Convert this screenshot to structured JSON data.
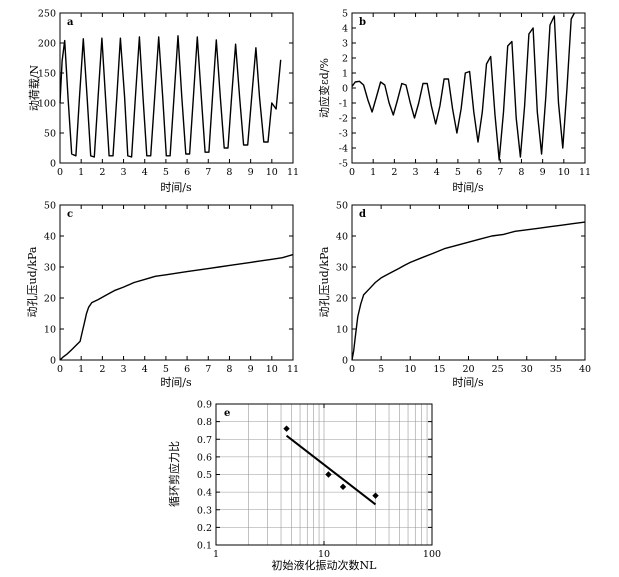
{
  "chart_data": [
    {
      "id": "a",
      "type": "line",
      "panel_label": "a",
      "xlabel": "时间/s",
      "ylabel": "动荷载/N",
      "xlim": [
        0,
        11
      ],
      "ylim": [
        0,
        250
      ],
      "xticks": [
        "0",
        "1",
        "2",
        "3",
        "4",
        "5",
        "6",
        "7",
        "8",
        "9",
        "10",
        "11"
      ],
      "yticks": [
        "0",
        "50",
        "100",
        "150",
        "200",
        "250"
      ],
      "series": [
        {
          "x": [
            0,
            0.1,
            0.22,
            0.38,
            0.55,
            0.75,
            0.92,
            1.1,
            1.28,
            1.45,
            1.62,
            1.8,
            1.98,
            2.15,
            2.32,
            2.5,
            2.68,
            2.85,
            3.05,
            3.2,
            3.38,
            3.56,
            3.75,
            3.92,
            4.1,
            4.28,
            4.47,
            4.66,
            4.85,
            5.02,
            5.2,
            5.38,
            5.57,
            5.75,
            5.94,
            6.12,
            6.3,
            6.48,
            6.67,
            6.85,
            7.03,
            7.2,
            7.38,
            7.57,
            7.75,
            7.93,
            8.1,
            8.29,
            8.48,
            8.67,
            8.86,
            9.05,
            9.25,
            9.42,
            9.62,
            9.82,
            10.0,
            10.2,
            10.42
          ],
          "y": [
            100,
            170,
            204,
            110,
            15,
            12,
            110,
            207,
            110,
            12,
            10,
            110,
            208,
            110,
            12,
            12,
            110,
            208,
            110,
            12,
            10,
            110,
            210,
            110,
            12,
            12,
            110,
            210,
            110,
            12,
            12,
            110,
            212,
            110,
            15,
            15,
            110,
            210,
            110,
            18,
            18,
            110,
            205,
            110,
            25,
            25,
            110,
            198,
            110,
            30,
            30,
            110,
            192,
            110,
            35,
            35,
            100,
            90,
            172
          ]
        }
      ]
    },
    {
      "id": "b",
      "type": "line",
      "panel_label": "b",
      "xlabel": "时间/s",
      "ylabel": "动应变εd/%",
      "xlim": [
        0,
        11
      ],
      "ylim": [
        -5,
        5
      ],
      "xticks": [
        "0",
        "1",
        "2",
        "3",
        "4",
        "5",
        "6",
        "7",
        "8",
        "9",
        "10",
        "11"
      ],
      "yticks": [
        "-5",
        "-4",
        "-3",
        "-2",
        "-1",
        "0",
        "1",
        "2",
        "3",
        "4",
        "5"
      ],
      "series": [
        {
          "x": [
            0,
            0.15,
            0.35,
            0.55,
            0.75,
            0.95,
            1.15,
            1.35,
            1.55,
            1.75,
            1.95,
            2.15,
            2.35,
            2.55,
            2.75,
            2.95,
            3.15,
            3.35,
            3.55,
            3.75,
            3.95,
            4.15,
            4.35,
            4.55,
            4.75,
            4.95,
            5.15,
            5.35,
            5.55,
            5.75,
            5.95,
            6.15,
            6.35,
            6.55,
            6.75,
            6.95,
            7.15,
            7.35,
            7.55,
            7.75,
            7.95,
            8.15,
            8.35,
            8.55,
            8.75,
            8.95,
            9.15,
            9.35,
            9.55,
            9.75,
            9.95,
            10.15,
            10.35,
            10.5
          ],
          "y": [
            0.1,
            0.4,
            0.45,
            0.2,
            -0.8,
            -1.6,
            -0.6,
            0.4,
            0.2,
            -1.0,
            -1.8,
            -0.8,
            0.3,
            0.2,
            -1.0,
            -2.0,
            -1.0,
            0.3,
            0.3,
            -1.2,
            -2.4,
            -1.2,
            0.6,
            0.6,
            -1.4,
            -3.0,
            -1.4,
            1.0,
            1.1,
            -1.6,
            -3.6,
            -1.6,
            1.6,
            2.1,
            -1.8,
            -4.8,
            -1.6,
            2.8,
            3.1,
            -2.0,
            -4.6,
            -1.2,
            3.6,
            4.0,
            -1.6,
            -4.4,
            -0.6,
            4.2,
            4.8,
            -1.0,
            -4.0,
            0.0,
            4.6,
            5.0
          ]
        }
      ]
    },
    {
      "id": "c",
      "type": "line",
      "panel_label": "c",
      "xlabel": "时间/s",
      "ylabel": "动孔压ud/kPa",
      "xlim": [
        0,
        11
      ],
      "ylim": [
        0,
        50
      ],
      "xticks": [
        "0",
        "1",
        "2",
        "3",
        "4",
        "5",
        "6",
        "7",
        "8",
        "9",
        "10",
        "11"
      ],
      "yticks": [
        "0",
        "10",
        "20",
        "30",
        "40",
        "50"
      ],
      "series": [
        {
          "x": [
            0,
            0.15,
            0.35,
            0.5,
            0.65,
            0.8,
            0.95,
            1.05,
            1.15,
            1.25,
            1.35,
            1.5,
            1.8,
            2.2,
            2.6,
            3.0,
            3.5,
            4.0,
            4.5,
            5.0,
            5.5,
            6.0,
            6.5,
            7.0,
            7.5,
            8.0,
            8.5,
            9.0,
            9.5,
            10.0,
            10.5,
            11.0
          ],
          "y": [
            0,
            1,
            2,
            3,
            4,
            5,
            6,
            9,
            12,
            15,
            17,
            18.5,
            19.5,
            21,
            22.5,
            23.5,
            25,
            26,
            27,
            27.5,
            28,
            28.5,
            29,
            29.5,
            30,
            30.5,
            31,
            31.5,
            32,
            32.5,
            33,
            34
          ]
        }
      ]
    },
    {
      "id": "d",
      "type": "line",
      "panel_label": "d",
      "xlabel": "时间/s",
      "ylabel": "动孔压ud/kPa",
      "xlim": [
        0,
        40
      ],
      "ylim": [
        0,
        50
      ],
      "xticks": [
        "0",
        "5",
        "10",
        "15",
        "20",
        "25",
        "30",
        "35",
        "40"
      ],
      "yticks": [
        "0",
        "10",
        "20",
        "30",
        "40",
        "50"
      ],
      "series": [
        {
          "x": [
            0,
            0.3,
            0.6,
            1.0,
            1.5,
            2.0,
            3.0,
            4.0,
            5.0,
            6.0,
            7.0,
            8.0,
            9.0,
            10.0,
            12.0,
            14.0,
            16.0,
            18.0,
            20.0,
            22.0,
            24.0,
            26.0,
            28.0,
            30.0,
            32.0,
            34.0,
            36.0,
            38.0,
            40.0
          ],
          "y": [
            0,
            3,
            8,
            14,
            18,
            21,
            23,
            25,
            26.5,
            27.5,
            28.5,
            29.5,
            30.5,
            31.5,
            33,
            34.5,
            36,
            37,
            38,
            39,
            40,
            40.5,
            41.5,
            42,
            42.5,
            43,
            43.5,
            44,
            44.5
          ]
        }
      ]
    },
    {
      "id": "e",
      "type": "scatter",
      "panel_label": "e",
      "xlabel": "初始液化振动次数NL",
      "ylabel": "循环剪应力比",
      "xscale": "log",
      "xlim": [
        1,
        100
      ],
      "ylim": [
        0.1,
        0.9
      ],
      "xticks": [
        "1",
        "10",
        "100"
      ],
      "yticks": [
        "0.1",
        "0.2",
        "0.3",
        "0.4",
        "0.5",
        "0.6",
        "0.7",
        "0.8",
        "0.9"
      ],
      "points": {
        "x": [
          4.5,
          11,
          15,
          30
        ],
        "y": [
          0.76,
          0.5,
          0.43,
          0.38
        ]
      },
      "fit": {
        "x": [
          4.5,
          30
        ],
        "y": [
          0.72,
          0.33
        ]
      }
    }
  ]
}
